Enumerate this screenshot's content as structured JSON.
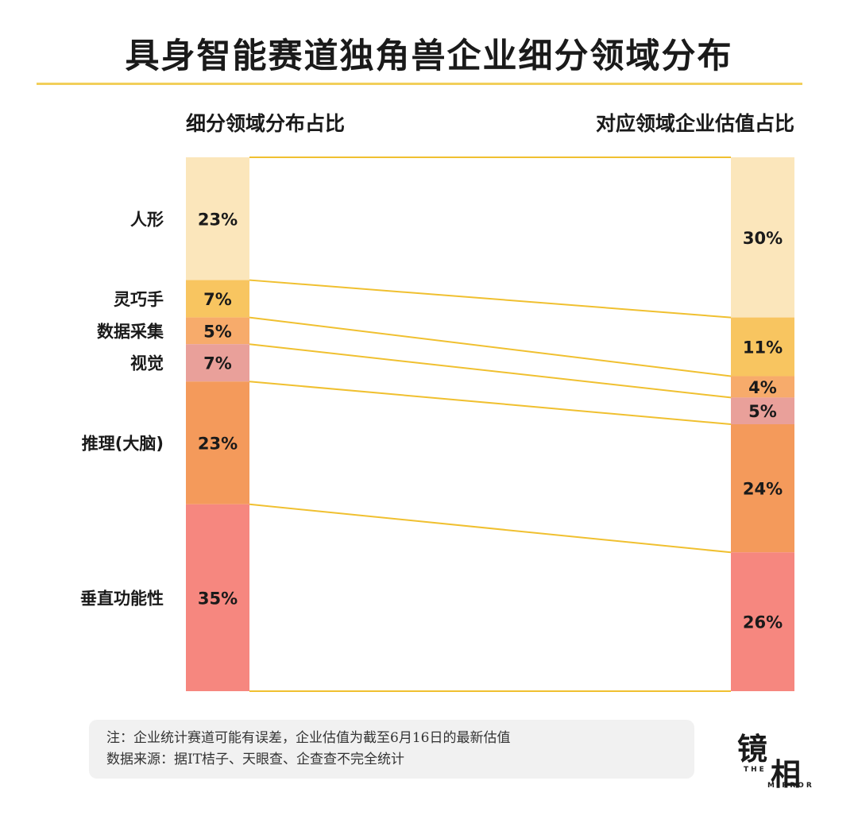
{
  "title": "具身智能赛道独角兽企业细分领域分布",
  "left_header": "细分领域分布占比",
  "right_header": "对应领域企业估值占比",
  "colors": {
    "rule": "#f2cf5a",
    "link_line": "#f0c030",
    "segments": [
      "#fbe6bb",
      "#f8c560",
      "#f7ab6b",
      "#e9a09a",
      "#f49a5b",
      "#f6877f"
    ]
  },
  "chart_data": {
    "type": "bar",
    "subtype": "stacked-100-percent-comparison",
    "categories": [
      "人形",
      "灵巧手",
      "数据采集",
      "视觉",
      "推理(大脑)",
      "垂直功能性"
    ],
    "series": [
      {
        "name": "细分领域分布占比",
        "values": [
          23,
          7,
          5,
          7,
          23,
          35
        ],
        "labels": [
          "23%",
          "7%",
          "5%",
          "7%",
          "23%",
          "35%"
        ]
      },
      {
        "name": "对应领域企业估值占比",
        "values": [
          30,
          11,
          4,
          5,
          24,
          26
        ],
        "labels": [
          "30%",
          "11%",
          "4%",
          "5%",
          "24%",
          "26%"
        ]
      }
    ],
    "ylim": [
      0,
      100
    ]
  },
  "note": {
    "line1": "注：企业统计赛道可能有误差，企业估值为截至6月16日的最新估值",
    "line2": "数据来源：据IT桔子、天眼查、企查查不完全统计"
  },
  "logo": {
    "main1": "镜",
    "main2": "相",
    "sub1": "THE",
    "sub2": "MIRROR"
  }
}
